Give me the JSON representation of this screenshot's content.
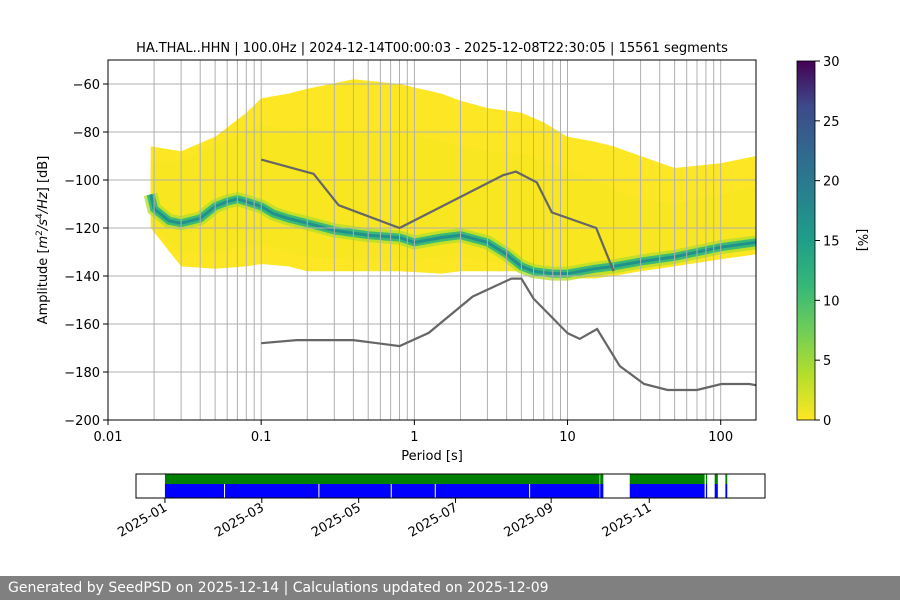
{
  "chart_data": {
    "type": "heatmap",
    "title": "HA.THAL..HHN | 100.0Hz | 2024-12-14T00:00:03 - 2025-12-08T22:30:05 | 15561 segments",
    "xlabel": "Period [s]",
    "ylabel_main": "Amplitude [",
    "ylabel_unit": "m",
    "ylabel_sup1": "2",
    "ylabel_mid": "/s",
    "ylabel_sup2": "4",
    "ylabel_tail": "/Hz] [dB]",
    "x_scale": "log",
    "xlim": [
      0.01,
      170
    ],
    "ylim": [
      -200,
      -50
    ],
    "grid": true,
    "x_ticks": [
      {
        "value": 0.01,
        "label": "0.01"
      },
      {
        "value": 0.1,
        "label": "0.1"
      },
      {
        "value": 1,
        "label": "1"
      },
      {
        "value": 10,
        "label": "10"
      },
      {
        "value": 100,
        "label": "100"
      }
    ],
    "y_ticks": [
      {
        "value": -60,
        "label": "−60"
      },
      {
        "value": -80,
        "label": "−80"
      },
      {
        "value": -100,
        "label": "−100"
      },
      {
        "value": -120,
        "label": "−120"
      },
      {
        "value": -140,
        "label": "−140"
      },
      {
        "value": -160,
        "label": "−160"
      },
      {
        "value": -180,
        "label": "−180"
      },
      {
        "value": -200,
        "label": "−200"
      }
    ],
    "colorbar": {
      "label": "[%]",
      "range": [
        0,
        30
      ],
      "ticks": [
        {
          "value": 0,
          "label": "0"
        },
        {
          "value": 5,
          "label": "5"
        },
        {
          "value": 10,
          "label": "10"
        },
        {
          "value": 15,
          "label": "15"
        },
        {
          "value": 20,
          "label": "20"
        },
        {
          "value": 25,
          "label": "25"
        },
        {
          "value": 30,
          "label": "30"
        }
      ],
      "colormap": "viridis"
    },
    "noise_model_high": {
      "period": [
        0.1,
        0.22,
        0.32,
        0.8,
        3.8,
        4.6,
        6.3,
        7.9,
        15.4,
        20
      ],
      "db": [
        -91.5,
        -97.4,
        -110.5,
        -120,
        -98,
        -96.5,
        -101,
        -113.5,
        -120,
        -138
      ]
    },
    "noise_model_low": {
      "period": [
        0.1,
        0.17,
        0.4,
        0.8,
        1.24,
        2.4,
        4.3,
        5,
        6,
        10,
        12,
        15.6,
        21.9,
        31.6,
        45,
        70,
        101,
        154,
        170
      ],
      "db": [
        -168,
        -166.7,
        -166.7,
        -169.2,
        -163.7,
        -148.6,
        -141.1,
        -141.1,
        -149.4,
        -163.8,
        -166.2,
        -162.1,
        -177.5,
        -185,
        -187.5,
        -187.5,
        -185,
        -185,
        -185.5
      ]
    },
    "mode_curve": {
      "period": [
        0.019,
        0.02,
        0.025,
        0.03,
        0.04,
        0.05,
        0.06,
        0.07,
        0.08,
        0.1,
        0.12,
        0.15,
        0.2,
        0.3,
        0.5,
        0.8,
        1.0,
        1.5,
        2.0,
        3.0,
        4.0,
        5.0,
        6.0,
        8.0,
        10,
        15,
        20,
        30,
        50,
        100,
        170
      ],
      "db": [
        -106,
        -112,
        -117,
        -118,
        -116,
        -111,
        -109,
        -108,
        -109,
        -111,
        -114,
        -116,
        -118,
        -121,
        -123,
        -124,
        -126,
        -124,
        -123,
        -126,
        -131,
        -136,
        -138,
        -139,
        -139,
        -137,
        -136,
        -134,
        -132,
        -128,
        -126
      ]
    },
    "spread_upper": {
      "period": [
        0.019,
        0.03,
        0.05,
        0.08,
        0.1,
        0.15,
        0.2,
        0.4,
        0.8,
        1.5,
        2,
        3,
        5,
        7,
        10,
        15,
        20,
        30,
        50,
        100,
        170
      ],
      "db": [
        -86,
        -88,
        -82,
        -72,
        -66,
        -64,
        -62,
        -58,
        -60,
        -64,
        -67,
        -70,
        -72,
        -76,
        -82,
        -84,
        -86,
        -90,
        -95,
        -93,
        -90
      ]
    },
    "spread_lower": {
      "period": [
        0.019,
        0.03,
        0.05,
        0.08,
        0.1,
        0.15,
        0.2,
        0.4,
        0.8,
        1.5,
        2,
        3,
        5,
        7,
        10,
        15,
        20,
        30,
        50,
        100,
        170
      ],
      "db": [
        -120,
        -136,
        -137,
        -136,
        -135,
        -136,
        -138,
        -138,
        -138,
        -139,
        -138,
        -138,
        -138,
        -140,
        -141,
        -141,
        -140,
        -138,
        -136,
        -133,
        -131
      ]
    },
    "core_upper": {
      "period": [
        0.019,
        0.03,
        0.05,
        0.08,
        0.1,
        0.15,
        0.2,
        0.4,
        0.8,
        1.5,
        2,
        3,
        5,
        7,
        10,
        15,
        20,
        30,
        50,
        100,
        170
      ],
      "db": [
        -92,
        -92,
        -85,
        -80,
        -77,
        -79,
        -78,
        -80,
        -80,
        -84,
        -86,
        -88,
        -89,
        -92,
        -96,
        -100,
        -104,
        -108,
        -110,
        -106,
        -103
      ]
    },
    "core_lower": {
      "period": [
        0.019,
        0.03,
        0.05,
        0.08,
        0.1,
        0.15,
        0.2,
        0.4,
        0.8,
        1.5,
        2,
        3,
        5,
        7,
        10,
        15,
        20,
        30,
        50,
        100,
        170
      ],
      "db": [
        -118,
        -130,
        -130,
        -128,
        -127,
        -130,
        -132,
        -133,
        -134,
        -132,
        -132,
        -134,
        -136,
        -138,
        -140,
        -140,
        -139,
        -137,
        -135,
        -131,
        -129
      ]
    }
  },
  "availability": {
    "date_labels": [
      "2025-01",
      "2025-03",
      "2025-05",
      "2025-07",
      "2025-09",
      "2025-11"
    ],
    "date_fraction": [
      0.046,
      0.2,
      0.354,
      0.508,
      0.66,
      0.816
    ],
    "green_spans": [
      [
        0.046,
        0.737
      ],
      [
        0.738,
        0.743
      ],
      [
        0.785,
        0.904
      ],
      [
        0.906,
        0.908
      ],
      [
        0.92,
        0.925
      ],
      [
        0.937,
        0.94
      ]
    ],
    "blue_spans": [
      [
        0.046,
        0.737
      ],
      [
        0.738,
        0.743
      ],
      [
        0.785,
        0.904
      ],
      [
        0.906,
        0.908
      ],
      [
        0.92,
        0.925
      ],
      [
        0.937,
        0.94
      ]
    ],
    "green_color": "#008000",
    "blue_color": "#0000ff"
  },
  "footer_text": "Generated by SeedPSD on 2025-12-14 | Calculations updated on 2025-12-09",
  "colors": {
    "model_line": "#666666",
    "grid": "#b0b0b0"
  }
}
